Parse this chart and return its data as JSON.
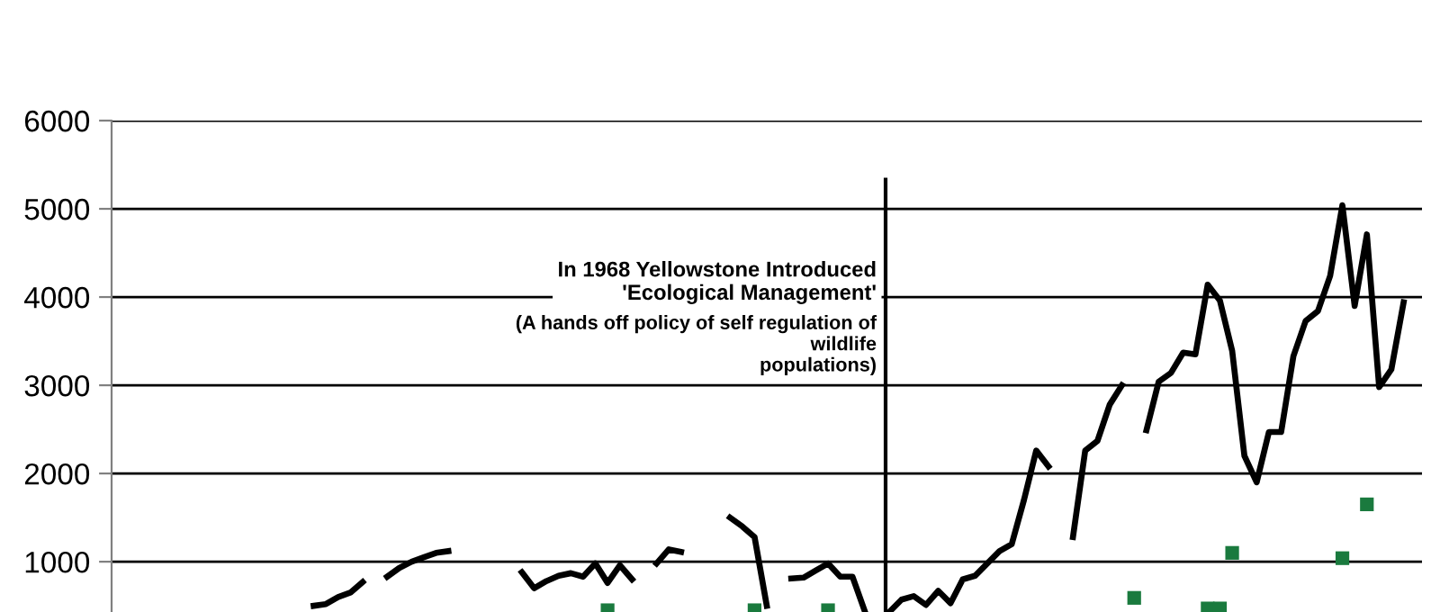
{
  "chart_data": {
    "type": "line",
    "categories": [
      null,
      null,
      null,
      null,
      null,
      null,
      null,
      null,
      null,
      null,
      null,
      null,
      null,
      null,
      null,
      null,
      null,
      null,
      null,
      null,
      null,
      null,
      null,
      null,
      null,
      null,
      null,
      null,
      null,
      null,
      null,
      null,
      null,
      null,
      null,
      null,
      null,
      null,
      null,
      null,
      null,
      null,
      null,
      null,
      null,
      null,
      null,
      null,
      null,
      null,
      null,
      null,
      null,
      null,
      null,
      null,
      null,
      null,
      null,
      null,
      null,
      null,
      null,
      null,
      null,
      null,
      null,
      null,
      null,
      null,
      null,
      null,
      null,
      null,
      null,
      null,
      null,
      null,
      null,
      null,
      null,
      null,
      null,
      null,
      null,
      null,
      null,
      null,
      null,
      null,
      null,
      null,
      null,
      null,
      null,
      null,
      null,
      null,
      null,
      null,
      null,
      null,
      null,
      null,
      null,
      null,
      null
    ],
    "series": [
      {
        "color": "#000000",
        "marker": "none",
        "values": [
          null,
          null,
          null,
          null,
          null,
          null,
          null,
          null,
          null,
          null,
          null,
          null,
          null,
          null,
          null,
          null,
          500,
          520,
          600,
          650,
          770,
          null,
          830,
          930,
          1000,
          1050,
          1100,
          1120,
          null,
          null,
          null,
          null,
          null,
          880,
          700,
          780,
          840,
          870,
          830,
          980,
          760,
          960,
          800,
          null,
          980,
          1140,
          1110,
          null,
          null,
          null,
          1500,
          1400,
          1280,
          500,
          null,
          810,
          820,
          900,
          980,
          830,
          830,
          440,
          null,
          430,
          570,
          610,
          510,
          670,
          530,
          800,
          840,
          980,
          1120,
          1200,
          1700,
          2260,
          2080,
          null,
          1280,
          2260,
          2370,
          2780,
          3000,
          null,
          2490,
          3040,
          3140,
          3370,
          3350,
          4140,
          3960,
          3390,
          2200,
          1900,
          2470,
          2470,
          3330,
          3730,
          3840,
          4240,
          5040,
          3900,
          4710,
          2980,
          3180,
          3940,
          null
        ]
      },
      {
        "type": "scatter",
        "color": "#1a7a3e",
        "marker": "square",
        "values": [
          null,
          null,
          null,
          null,
          null,
          null,
          null,
          null,
          null,
          null,
          null,
          null,
          null,
          null,
          null,
          null,
          null,
          null,
          null,
          null,
          null,
          null,
          null,
          null,
          null,
          null,
          null,
          null,
          null,
          null,
          null,
          null,
          null,
          null,
          null,
          null,
          null,
          null,
          null,
          null,
          450,
          null,
          null,
          null,
          null,
          null,
          null,
          null,
          null,
          null,
          null,
          null,
          450,
          null,
          null,
          null,
          null,
          null,
          450,
          null,
          null,
          null,
          null,
          null,
          null,
          null,
          null,
          null,
          null,
          null,
          null,
          null,
          null,
          null,
          null,
          null,
          null,
          null,
          null,
          null,
          null,
          null,
          null,
          590,
          null,
          null,
          null,
          null,
          null,
          470,
          470,
          1100,
          null,
          null,
          null,
          null,
          null,
          null,
          null,
          null,
          1040,
          null,
          1650,
          null,
          null,
          null,
          null
        ]
      }
    ],
    "ylim": [
      430,
      6000
    ],
    "yticks": [
      1000,
      2000,
      3000,
      4000,
      5000,
      6000
    ],
    "grid": "y",
    "tick_labels": "y",
    "annotations": [
      "In 1968 Yellowstone Introduced\n'Ecological Management'",
      "(A hands off policy of self regulation of\nwildlife\npopulations)"
    ]
  }
}
